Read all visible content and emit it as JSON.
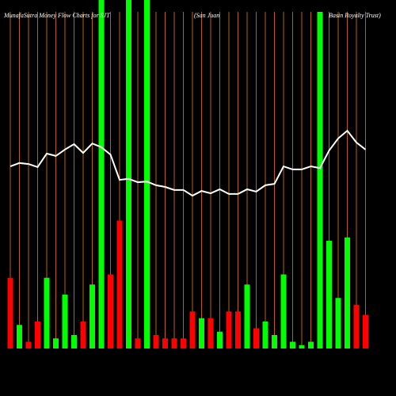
{
  "chart_data": {
    "type": "money-flow",
    "title_parts": [
      "MunafaSutra  Money  Flow  Charts for SJT",
      "(San  Juan",
      "Basin  Royalty Trust)"
    ],
    "values": [
      21,
      7,
      2,
      8,
      21,
      3,
      16,
      4,
      8,
      19,
      110,
      22,
      38,
      110,
      3,
      110,
      4,
      3,
      3,
      3,
      11,
      9,
      9,
      5,
      11,
      11,
      19,
      6,
      8,
      4,
      22,
      2,
      1,
      2,
      100,
      32,
      15,
      33,
      13,
      10
    ],
    "colors": [
      "#ff0000",
      "#00ff00",
      "#ff0000",
      "#ff0000",
      "#00ff00",
      "#00ff00",
      "#00ff00",
      "#00ff00",
      "#ff0000",
      "#00ff00",
      "#00ff00",
      "#ff0000",
      "#ff0000",
      "#00ff00",
      "#ff0000",
      "#00ff00",
      "#ff0000",
      "#ff0000",
      "#ff0000",
      "#ff0000",
      "#ff0000",
      "#00ff00",
      "#ff0000",
      "#00ff00",
      "#ff0000",
      "#ff0000",
      "#00ff00",
      "#ff0000",
      "#00ff00",
      "#00ff00",
      "#00ff00",
      "#00ff00",
      "#00ff00",
      "#00ff00",
      "#00ff00",
      "#00ff00",
      "#00ff00",
      "#00ff00",
      "#ff0000",
      "#ff0000"
    ],
    "ylim": [
      0,
      100
    ],
    "line_values": [
      54.1,
      55.1,
      54.8,
      53.9,
      57.9,
      57.2,
      59.1,
      60.7,
      58.1,
      60.9,
      59.8,
      57.6,
      50.1,
      50.4,
      49.4,
      49.6,
      48.5,
      48.0,
      47.1,
      47.1,
      45.4,
      46.8,
      46.1,
      47.3,
      45.9,
      45.9,
      47.3,
      46.6,
      48.5,
      48.9,
      54.1,
      53.2,
      53.2,
      54.1,
      53.6,
      58.8,
      62.4,
      64.7,
      61.2,
      59.1
    ],
    "line_color": "#ffffff",
    "y2lim": [
      0,
      100
    ]
  }
}
